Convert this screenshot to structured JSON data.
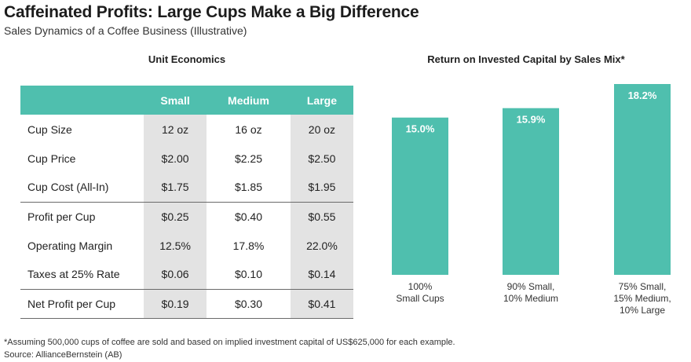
{
  "header": {
    "title": "Caffeinated Profits: Large Cups Make a Big Difference",
    "subtitle": "Sales Dynamics of a Coffee Business (Illustrative)"
  },
  "table": {
    "title": "Unit Economics",
    "columns": [
      "",
      "Small",
      "Medium",
      "Large"
    ],
    "rows": [
      {
        "label": "Cup Size",
        "values": [
          "12 oz",
          "16 oz",
          "20 oz"
        ]
      },
      {
        "label": "Cup Price",
        "values": [
          "$2.00",
          "$2.25",
          "$2.50"
        ]
      },
      {
        "label": "Cup Cost (All-In)",
        "values": [
          "$1.75",
          "$1.85",
          "$1.95"
        ]
      },
      {
        "label": "Profit per Cup",
        "values": [
          "$0.25",
          "$0.40",
          "$0.55"
        ]
      },
      {
        "label": "Operating Margin",
        "values": [
          "12.5%",
          "17.8%",
          "22.0%"
        ]
      },
      {
        "label": "Taxes at 25% Rate",
        "values": [
          "$0.06",
          "$0.10",
          "$0.14"
        ]
      },
      {
        "label": "Net Profit per Cup",
        "values": [
          "$0.19",
          "$0.30",
          "$0.41"
        ]
      }
    ]
  },
  "chart_data": {
    "type": "bar",
    "title": "Return on Invested Capital by Sales Mix*",
    "categories": [
      [
        "100%",
        "Small Cups"
      ],
      [
        "90% Small,",
        "10% Medium"
      ],
      [
        "75% Small,",
        "15% Medium,",
        "10% Large"
      ]
    ],
    "values": [
      15.0,
      15.9,
      18.2
    ],
    "value_labels": [
      "15.0%",
      "15.9%",
      "18.2%"
    ],
    "ylim": [
      0,
      18.2
    ],
    "grid": false,
    "legend": "none",
    "bar_color": "#4fbfae",
    "label_color": "#ffffff"
  },
  "footer": {
    "footnote": "*Assuming 500,000 cups of coffee are sold and based on implied investment capital of US$625,000 for each example.",
    "source": "Source: AllianceBernstein (AB)"
  },
  "colors": {
    "accent": "#4fbfae",
    "shade": "#e3e3e3",
    "rule": "#6a6a6a"
  }
}
